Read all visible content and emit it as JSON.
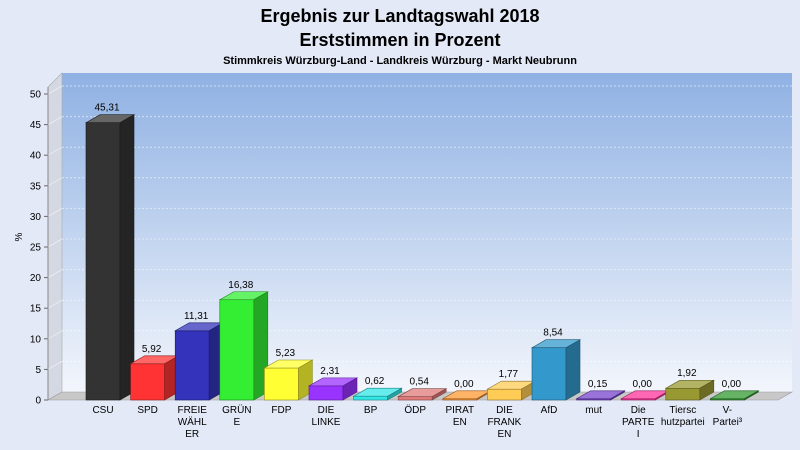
{
  "chart_data": {
    "type": "bar",
    "title": "Ergebnis zur Landtagswahl 2018",
    "title2": "Erststimmen in Prozent",
    "subtitle": "Stimmkreis Würzburg-Land - Landkreis Würzburg - Markt Neubrunn",
    "ylabel": "%",
    "xlabel": "",
    "ylim": [
      0,
      50
    ],
    "yticks": [
      "0",
      "5",
      "10",
      "15",
      "20",
      "25",
      "30",
      "35",
      "40",
      "45",
      "50"
    ],
    "grid": true,
    "categories": [
      [
        "CSU"
      ],
      [
        "SPD"
      ],
      [
        "FREIE",
        "WÄHL",
        "ER"
      ],
      [
        "GRÜN",
        "E"
      ],
      [
        "FDP"
      ],
      [
        "DIE",
        "LINKE"
      ],
      [
        "BP"
      ],
      [
        "ÖDP"
      ],
      [
        "PIRAT",
        "EN"
      ],
      [
        "DIE",
        "FRANK",
        "EN"
      ],
      [
        "AfD"
      ],
      [
        "mut"
      ],
      [
        "Die",
        "PARTE",
        "I"
      ],
      [
        "Tiersc",
        "hutzpartei"
      ],
      [
        "V-",
        "Partei³"
      ]
    ],
    "values": [
      45.31,
      5.92,
      11.31,
      16.38,
      5.23,
      2.31,
      0.62,
      0.54,
      0.0,
      1.77,
      8.54,
      0.15,
      0.0,
      1.92,
      0.0
    ],
    "value_labels": [
      "45,31",
      "5,92",
      "11,31",
      "16,38",
      "5,23",
      "2,31",
      "0,62",
      "0,54",
      "0,00",
      "1,77",
      "8,54",
      "0,15",
      "0,00",
      "1,92",
      "0,00"
    ],
    "colors": [
      "#333333",
      "#ff3333",
      "#3333bb",
      "#33ee33",
      "#ffff33",
      "#9933ff",
      "#33e6e6",
      "#e07a7a",
      "#ff9933",
      "#ffcc55",
      "#3399cc",
      "#7744cc",
      "#ff3399",
      "#999933",
      "#339933"
    ]
  }
}
